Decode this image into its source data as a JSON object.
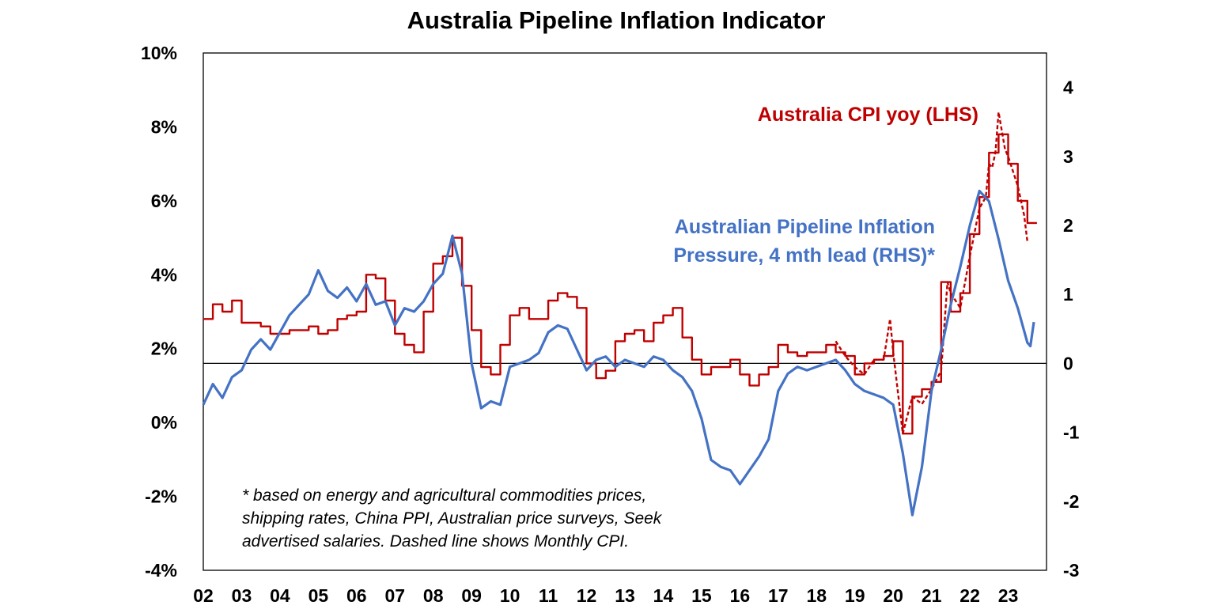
{
  "chart_data": {
    "type": "line",
    "title": "Australia Pipeline Inflation Indicator",
    "x_tick_labels": [
      "02",
      "03",
      "04",
      "05",
      "06",
      "07",
      "08",
      "09",
      "10",
      "11",
      "12",
      "13",
      "14",
      "15",
      "16",
      "17",
      "18",
      "19",
      "20",
      "21",
      "22",
      "23"
    ],
    "xlim": [
      2002.0,
      2024.0
    ],
    "y_left": {
      "ticks": [
        "10%",
        "8%",
        "6%",
        "4%",
        "2%",
        "0%",
        "-2%",
        "-4%"
      ],
      "min": -4,
      "max": 10,
      "unit": "%"
    },
    "y_right": {
      "ticks": [
        "4",
        "3",
        "2",
        "1",
        "0",
        "-1",
        "-2",
        "-3"
      ],
      "min": -3,
      "max": 4.5
    },
    "zero_line": {
      "axis": "right",
      "value": 0
    },
    "series": [
      {
        "name": "Australia CPI yoy (LHS)",
        "axis": "left",
        "style": "step",
        "color": "#C00000",
        "x": [
          2002.0,
          2002.25,
          2002.5,
          2002.75,
          2003.0,
          2003.25,
          2003.5,
          2003.75,
          2004.0,
          2004.25,
          2004.5,
          2004.75,
          2005.0,
          2005.25,
          2005.5,
          2005.75,
          2006.0,
          2006.25,
          2006.5,
          2006.75,
          2007.0,
          2007.25,
          2007.5,
          2007.75,
          2008.0,
          2008.25,
          2008.5,
          2008.75,
          2009.0,
          2009.25,
          2009.5,
          2009.75,
          2010.0,
          2010.25,
          2010.5,
          2010.75,
          2011.0,
          2011.25,
          2011.5,
          2011.75,
          2012.0,
          2012.25,
          2012.5,
          2012.75,
          2013.0,
          2013.25,
          2013.5,
          2013.75,
          2014.0,
          2014.25,
          2014.5,
          2014.75,
          2015.0,
          2015.25,
          2015.5,
          2015.75,
          2016.0,
          2016.25,
          2016.5,
          2016.75,
          2017.0,
          2017.25,
          2017.5,
          2017.75,
          2018.0,
          2018.25,
          2018.5,
          2018.75,
          2019.0,
          2019.25,
          2019.5,
          2019.75,
          2020.0,
          2020.25,
          2020.5,
          2020.75,
          2021.0,
          2021.25,
          2021.5,
          2021.75,
          2022.0,
          2022.25,
          2022.5,
          2022.75,
          2023.0,
          2023.25,
          2023.5
        ],
        "values": [
          2.8,
          3.2,
          3.0,
          3.3,
          2.7,
          2.7,
          2.6,
          2.4,
          2.4,
          2.5,
          2.5,
          2.6,
          2.4,
          2.5,
          2.8,
          2.9,
          3.0,
          4.0,
          3.9,
          3.3,
          2.4,
          2.1,
          1.9,
          3.0,
          4.3,
          4.5,
          5.0,
          3.7,
          2.5,
          1.5,
          1.3,
          2.1,
          2.9,
          3.1,
          2.8,
          2.8,
          3.3,
          3.5,
          3.4,
          3.1,
          1.6,
          1.2,
          1.4,
          2.2,
          2.4,
          2.5,
          2.2,
          2.7,
          2.9,
          3.1,
          2.3,
          1.7,
          1.3,
          1.5,
          1.5,
          1.7,
          1.3,
          1.0,
          1.3,
          1.5,
          2.1,
          1.9,
          1.8,
          1.9,
          1.9,
          2.1,
          1.9,
          1.8,
          1.3,
          1.6,
          1.7,
          1.8,
          2.2,
          -0.3,
          0.7,
          0.9,
          1.1,
          3.8,
          3.0,
          3.5,
          5.1,
          6.1,
          7.3,
          7.8,
          7.0,
          6.0,
          5.4
        ]
      },
      {
        "name": "Monthly CPI",
        "axis": "left",
        "style": "dashed",
        "color": "#C00000",
        "x": [
          2018.5,
          2018.75,
          2019.0,
          2019.25,
          2019.5,
          2019.75,
          2019.917,
          2020.0,
          2020.25,
          2020.5,
          2020.75,
          2021.0,
          2021.25,
          2021.417,
          2021.5,
          2021.75,
          2022.0,
          2022.25,
          2022.417,
          2022.5,
          2022.583,
          2022.667,
          2022.75,
          2022.917,
          2023.0,
          2023.25,
          2023.417,
          2023.5
        ],
        "values": [
          2.2,
          1.8,
          1.5,
          1.3,
          1.7,
          1.7,
          2.8,
          1.9,
          -0.3,
          0.7,
          0.5,
          0.9,
          1.4,
          3.8,
          3.5,
          3.1,
          4.5,
          5.8,
          6.1,
          7.0,
          6.9,
          7.3,
          8.4,
          7.4,
          7.2,
          6.4,
          5.6,
          4.9
        ]
      },
      {
        "name": "Australian Pipeline Inflation Pressure, 4 mth lead (RHS)*",
        "axis": "right",
        "style": "solid",
        "color": "#4472C4",
        "x": [
          2002.0,
          2002.25,
          2002.5,
          2002.75,
          2003.0,
          2003.25,
          2003.5,
          2003.75,
          2004.0,
          2004.25,
          2004.5,
          2004.75,
          2005.0,
          2005.25,
          2005.5,
          2005.75,
          2006.0,
          2006.25,
          2006.5,
          2006.75,
          2007.0,
          2007.25,
          2007.5,
          2007.75,
          2008.0,
          2008.25,
          2008.5,
          2008.75,
          2009.0,
          2009.25,
          2009.5,
          2009.75,
          2010.0,
          2010.25,
          2010.5,
          2010.75,
          2011.0,
          2011.25,
          2011.5,
          2011.75,
          2012.0,
          2012.25,
          2012.5,
          2012.75,
          2013.0,
          2013.25,
          2013.5,
          2013.75,
          2014.0,
          2014.25,
          2014.5,
          2014.75,
          2015.0,
          2015.25,
          2015.5,
          2015.75,
          2016.0,
          2016.25,
          2016.5,
          2016.75,
          2017.0,
          2017.25,
          2017.5,
          2017.75,
          2018.0,
          2018.25,
          2018.5,
          2018.75,
          2019.0,
          2019.25,
          2019.5,
          2019.75,
          2020.0,
          2020.25,
          2020.5,
          2020.75,
          2021.0,
          2021.25,
          2021.5,
          2021.75,
          2022.0,
          2022.25,
          2022.5,
          2022.75,
          2023.0,
          2023.25,
          2023.5,
          2023.58,
          2023.67
        ],
        "values": [
          -0.6,
          -0.3,
          -0.5,
          -0.2,
          -0.1,
          0.2,
          0.35,
          0.2,
          0.45,
          0.7,
          0.85,
          1.0,
          1.35,
          1.05,
          0.95,
          1.1,
          0.9,
          1.15,
          0.85,
          0.9,
          0.55,
          0.8,
          0.75,
          0.9,
          1.15,
          1.3,
          1.85,
          1.3,
          0.0,
          -0.65,
          -0.55,
          -0.6,
          -0.05,
          0.0,
          0.05,
          0.15,
          0.45,
          0.55,
          0.5,
          0.2,
          -0.1,
          0.05,
          0.1,
          -0.05,
          0.05,
          0.0,
          -0.05,
          0.1,
          0.05,
          -0.1,
          -0.2,
          -0.4,
          -0.8,
          -1.4,
          -1.5,
          -1.55,
          -1.75,
          -1.55,
          -1.35,
          -1.1,
          -0.4,
          -0.15,
          -0.05,
          -0.1,
          -0.05,
          0.0,
          0.05,
          -0.1,
          -0.3,
          -0.4,
          -0.45,
          -0.5,
          -0.6,
          -1.3,
          -2.2,
          -1.5,
          -0.4,
          0.2,
          0.85,
          1.4,
          2.0,
          2.5,
          2.35,
          1.8,
          1.2,
          0.8,
          0.3,
          0.25,
          0.6
        ]
      }
    ],
    "labels": {
      "cpi": "Australia CPI yoy (LHS)",
      "pipeline_line1": "Australian Pipeline Inflation",
      "pipeline_line2": "Pressure, 4 mth lead (RHS)*"
    },
    "note": [
      "* based on energy and agricultural commodities prices,",
      "shipping rates, China PPI, Australian price surveys, Seek",
      "advertised salaries. Dashed line shows Monthly CPI."
    ],
    "colors": {
      "cpi": "#C00000",
      "pipeline": "#4472C4",
      "axis": "#000000",
      "frame": "#000000"
    }
  }
}
